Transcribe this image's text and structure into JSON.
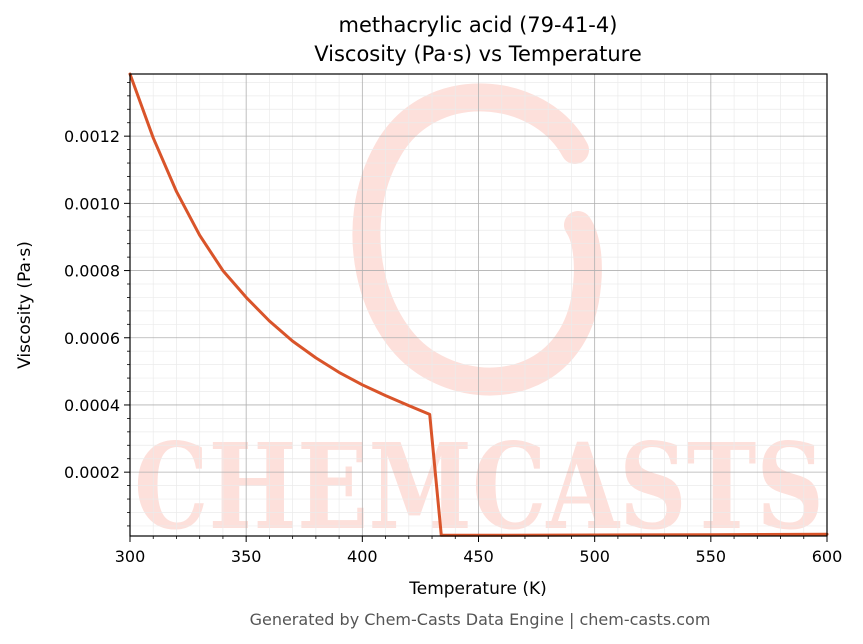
{
  "chart_data": {
    "type": "line",
    "title": "methacrylic acid (79-41-4)",
    "subtitle": "Viscosity (Pa·s) vs Temperature",
    "xlabel": "Temperature (K)",
    "ylabel": "Viscosity (Pa·s)",
    "xlim": [
      300,
      600
    ],
    "ylim": [
      1e-05,
      0.001385
    ],
    "xticks": [
      300,
      350,
      400,
      450,
      500,
      550,
      600
    ],
    "xtick_labels": [
      "300",
      "350",
      "400",
      "450",
      "500",
      "550",
      "600"
    ],
    "yticks": [
      0.0002,
      0.0004,
      0.0006,
      0.0008,
      0.001,
      0.0012
    ],
    "ytick_labels": [
      "0.0002",
      "0.0004",
      "0.0006",
      "0.0008",
      "0.0010",
      "0.0012"
    ],
    "grid": true,
    "series": [
      {
        "color": "#d9542a",
        "x": [
          300,
          310,
          320,
          330,
          340,
          350,
          360,
          370,
          380,
          390,
          400,
          410,
          420,
          429,
          434,
          450,
          500,
          550,
          600
        ],
        "y": [
          0.001385,
          0.001195,
          0.001035,
          0.000905,
          0.0008,
          0.00072,
          0.00065,
          0.00059,
          0.00054,
          0.000497,
          0.00046,
          0.000428,
          0.000398,
          0.000372,
          1.2e-05,
          1.2e-05,
          1.3e-05,
          1.4e-05,
          1.5e-05
        ]
      }
    ]
  },
  "watermark": {
    "text": "CHEMCASTS",
    "color": "#fde0db"
  },
  "footer": {
    "text": "Generated by Chem-Casts Data Engine | chem-casts.com"
  }
}
